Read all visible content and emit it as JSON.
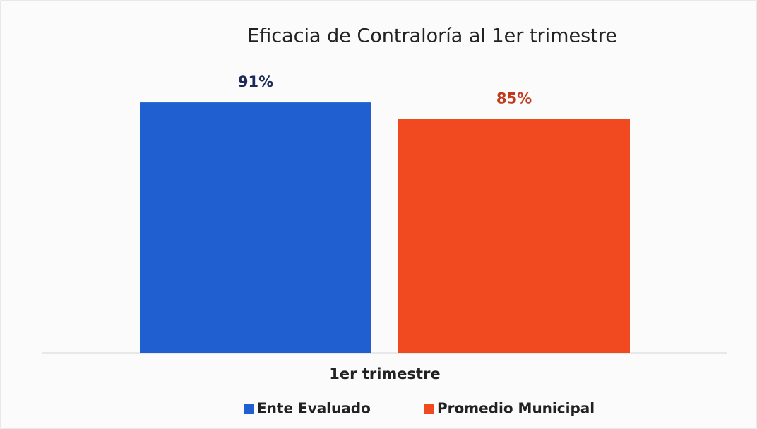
{
  "chart_data": {
    "type": "bar",
    "title": "Eficacia de Contraloría al 1er trimestre",
    "categories": [
      "1er trimestre"
    ],
    "series": [
      {
        "name": "Ente Evaluado",
        "color": "#1f5fcf",
        "label_color": "#1c2a5a",
        "values": [
          91
        ],
        "value_labels": [
          "91%"
        ]
      },
      {
        "name": "Promedio Municipal",
        "color": "#f24a20",
        "label_color": "#c0391b",
        "values": [
          85
        ],
        "value_labels": [
          "85%"
        ]
      }
    ],
    "ylim": [
      0,
      100
    ],
    "legend": "bottom"
  }
}
